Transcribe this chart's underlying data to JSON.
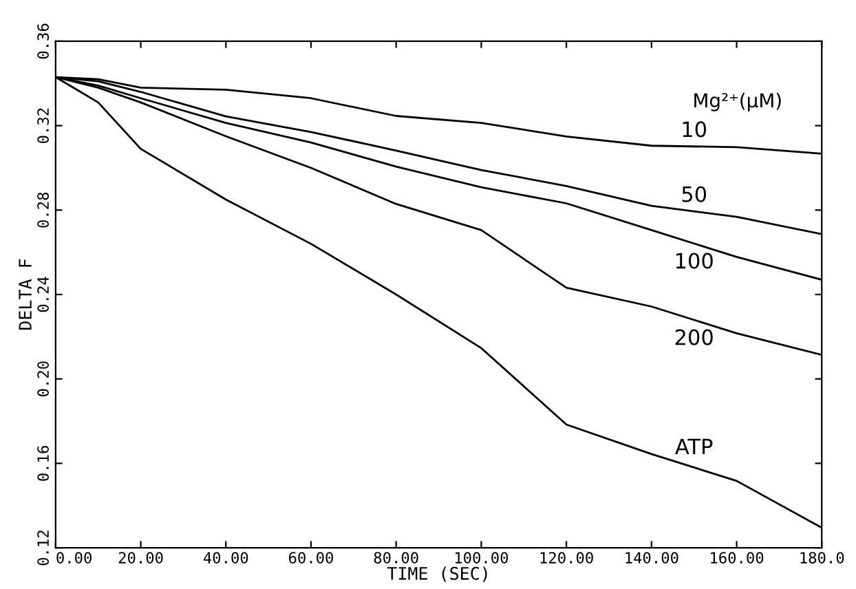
{
  "chart_data": {
    "type": "line",
    "xlabel": "TIME (SEC)",
    "ylabel": "DELTA F",
    "annotations": [
      "Mg²⁺(μM)"
    ],
    "x": [
      0,
      10,
      20,
      40,
      60,
      80,
      100,
      120,
      140,
      160,
      180
    ],
    "series": [
      {
        "name": "10",
        "color": "#000000",
        "values": [
          0.343,
          0.342,
          0.338,
          0.337,
          0.333,
          0.3246,
          0.3213,
          0.3149,
          0.3105,
          0.3098,
          0.3067
        ]
      },
      {
        "name": "50",
        "color": "#000000",
        "values": [
          0.343,
          0.341,
          0.336,
          0.3244,
          0.317,
          0.3082,
          0.299,
          0.2914,
          0.282,
          0.2768,
          0.2686
        ]
      },
      {
        "name": "100",
        "color": "#000000",
        "values": [
          0.343,
          0.339,
          0.333,
          0.3213,
          0.312,
          0.3006,
          0.2908,
          0.2832,
          0.2705,
          0.2578,
          0.247
        ]
      },
      {
        "name": "200",
        "color": "#000000",
        "values": [
          0.343,
          0.338,
          0.331,
          0.315,
          0.3,
          0.2829,
          0.2705,
          0.2432,
          0.2343,
          0.2216,
          0.2114
        ]
      },
      {
        "name": "ATP",
        "color": "#000000",
        "values": [
          0.343,
          0.331,
          0.309,
          0.285,
          0.264,
          0.24,
          0.2146,
          0.1784,
          0.1644,
          0.1517,
          0.1295
        ]
      }
    ],
    "xlim": [
      0,
      180
    ],
    "ylim": [
      0.12,
      0.36
    ],
    "xticks": [
      {
        "value": 0,
        "label": "0.00"
      },
      {
        "value": 20,
        "label": "20.00"
      },
      {
        "value": 40,
        "label": "40.00"
      },
      {
        "value": 60,
        "label": "60.00"
      },
      {
        "value": 80,
        "label": "80.00"
      },
      {
        "value": 100,
        "label": "100.00"
      },
      {
        "value": 120,
        "label": "120.00"
      },
      {
        "value": 140,
        "label": "140.00"
      },
      {
        "value": 160,
        "label": "160.00"
      },
      {
        "value": 180,
        "label": "180.0"
      }
    ],
    "yticks": [
      {
        "value": 0.12,
        "label": "0.12"
      },
      {
        "value": 0.16,
        "label": "0.16"
      },
      {
        "value": 0.2,
        "label": "0.20"
      },
      {
        "value": 0.24,
        "label": "0.24"
      },
      {
        "value": 0.28,
        "label": "0.28"
      },
      {
        "value": 0.32,
        "label": "0.32"
      },
      {
        "value": 0.36,
        "label": "0.36"
      }
    ],
    "grid": false,
    "legend": false,
    "marker": "none",
    "line_style": "solid"
  }
}
